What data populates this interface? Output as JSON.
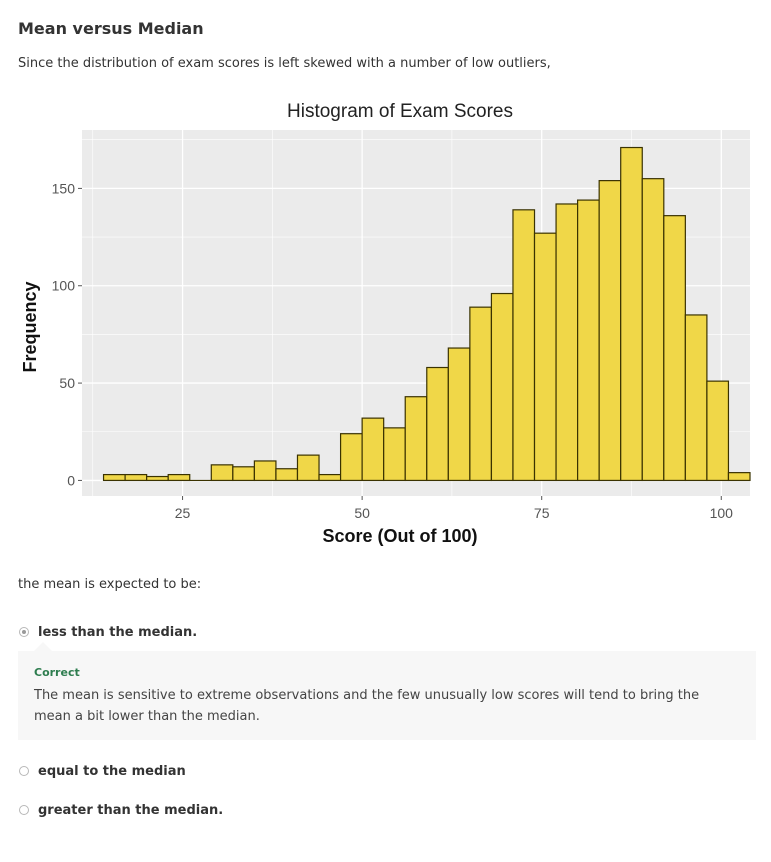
{
  "question": {
    "title": "Mean versus Median",
    "intro": "Since the distribution of exam scores is left skewed with a number of low outliers,",
    "prompt": "the mean is expected to be:"
  },
  "options": [
    {
      "label": "less than the median.",
      "selected": true
    },
    {
      "label": "equal to the median",
      "selected": false
    },
    {
      "label": "greater than the median.",
      "selected": false
    }
  ],
  "feedback": {
    "status": "Correct",
    "text": "The mean is sensitive to extreme observations and the few unusually low scores will tend to bring the mean a bit lower than the median."
  },
  "colors": {
    "bar_fill": "#f0d748",
    "bar_stroke": "#3a3200",
    "panel_bg": "#ebebeb",
    "grid": "#ffffff",
    "correct": "#2e7d4f"
  },
  "chart_data": {
    "type": "bar",
    "title": "Histogram of Exam Scores",
    "xlabel": "Score (Out of 100)",
    "ylabel": "Frequency",
    "bin_width": 3,
    "bins_start": [
      14,
      17,
      20,
      23,
      26,
      29,
      32,
      35,
      38,
      41,
      44,
      47,
      50,
      53,
      56,
      59,
      62,
      65,
      68,
      71,
      74,
      77,
      80,
      83,
      86,
      89,
      92,
      95,
      98,
      101
    ],
    "values": [
      3,
      3,
      2,
      3,
      0,
      8,
      7,
      10,
      6,
      13,
      3,
      24,
      32,
      27,
      43,
      58,
      68,
      89,
      96,
      139,
      127,
      142,
      144,
      154,
      171,
      155,
      136,
      85,
      51,
      4
    ],
    "xlim": [
      11,
      104
    ],
    "ylim": [
      -8,
      180
    ],
    "xticks": [
      25,
      50,
      75,
      100
    ],
    "yticks": [
      0,
      50,
      100,
      150
    ],
    "grid": true,
    "legend": "none"
  }
}
